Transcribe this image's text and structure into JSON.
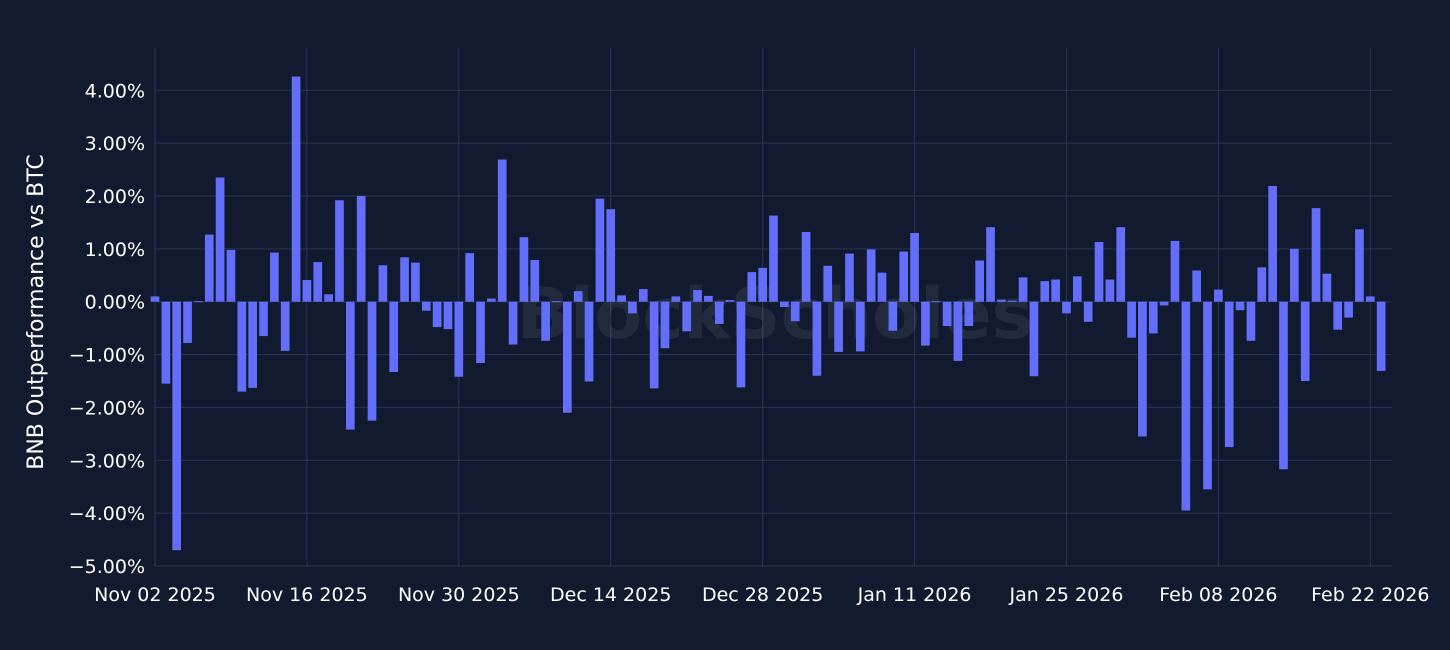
{
  "chart_data": {
    "type": "bar",
    "title": "",
    "xlabel": "",
    "ylabel": "BNB Outperformance vs BTC",
    "watermark": "BlockScholes",
    "x_start": "2025-11-02",
    "x_range": [
      "2025-11-02",
      "2026-02-24"
    ],
    "ylim": [
      -5.0,
      4.8
    ],
    "y_ticks": [
      {
        "value": 4,
        "label": "4.00%"
      },
      {
        "value": 3,
        "label": "3.00%"
      },
      {
        "value": 2,
        "label": "2.00%"
      },
      {
        "value": 1,
        "label": "1.00%"
      },
      {
        "value": 0,
        "label": "0.00%"
      },
      {
        "value": -1,
        "label": "−1.00%"
      },
      {
        "value": -2,
        "label": "−2.00%"
      },
      {
        "value": -3,
        "label": "−3.00%"
      },
      {
        "value": -4,
        "label": "−4.00%"
      },
      {
        "value": -5,
        "label": "−5.00%"
      }
    ],
    "x_ticks": [
      {
        "date": "2025-11-02",
        "label": "Nov 02 2025"
      },
      {
        "date": "2025-11-16",
        "label": "Nov 16 2025"
      },
      {
        "date": "2025-11-30",
        "label": "Nov 30 2025"
      },
      {
        "date": "2025-12-14",
        "label": "Dec 14 2025"
      },
      {
        "date": "2025-12-28",
        "label": "Dec 28 2025"
      },
      {
        "date": "2026-01-11",
        "label": "Jan 11 2026"
      },
      {
        "date": "2026-01-25",
        "label": "Jan 25 2026"
      },
      {
        "date": "2026-02-08",
        "label": "Feb 08 2026"
      },
      {
        "date": "2026-02-22",
        "label": "Feb 22 2026"
      }
    ],
    "grid": true,
    "colors": {
      "bar": "#636efa",
      "background": "#111a2e",
      "grid": "#28355a",
      "text": "#ffffff"
    },
    "series": [
      {
        "values": [
          0.1,
          -1.55,
          -4.7,
          -0.78,
          0.0,
          1.27,
          2.35,
          0.98,
          -1.7,
          -1.63,
          -0.65,
          0.93,
          -0.93,
          4.26,
          0.41,
          0.75,
          0.14,
          1.92,
          -2.42,
          2.0,
          -2.25,
          0.69,
          -1.33,
          0.84,
          0.74,
          -0.17,
          -0.48,
          -0.52,
          -1.42,
          0.92,
          -1.16,
          0.06,
          2.69,
          -0.81,
          1.22,
          0.79,
          -0.74,
          0.0,
          -2.1,
          0.2,
          -1.51,
          1.95,
          1.75,
          0.12,
          -0.22,
          0.24,
          -1.64,
          -0.88,
          0.1,
          -0.56,
          0.22,
          0.11,
          -0.42,
          0.03,
          -1.62,
          0.56,
          0.64,
          1.63,
          -0.1,
          -0.37,
          1.32,
          -1.4,
          0.68,
          -0.95,
          0.91,
          -0.94,
          0.99,
          0.55,
          -0.55,
          0.95,
          1.3,
          -0.83,
          0.0,
          -0.46,
          -1.12,
          -0.46,
          0.78,
          1.41,
          0.04,
          0.02,
          0.46,
          -1.41,
          0.39,
          0.42,
          -0.22,
          0.48,
          -0.38,
          1.13,
          0.42,
          1.41,
          -0.68,
          -2.55,
          -0.6,
          -0.07,
          1.15,
          -3.95,
          0.59,
          -3.55,
          0.23,
          -2.75,
          -0.16,
          -0.74,
          0.65,
          2.19,
          -3.17,
          1.0,
          -1.5,
          1.77,
          0.53,
          -0.53,
          -0.3,
          1.37,
          0.1,
          -1.31
        ]
      }
    ]
  }
}
